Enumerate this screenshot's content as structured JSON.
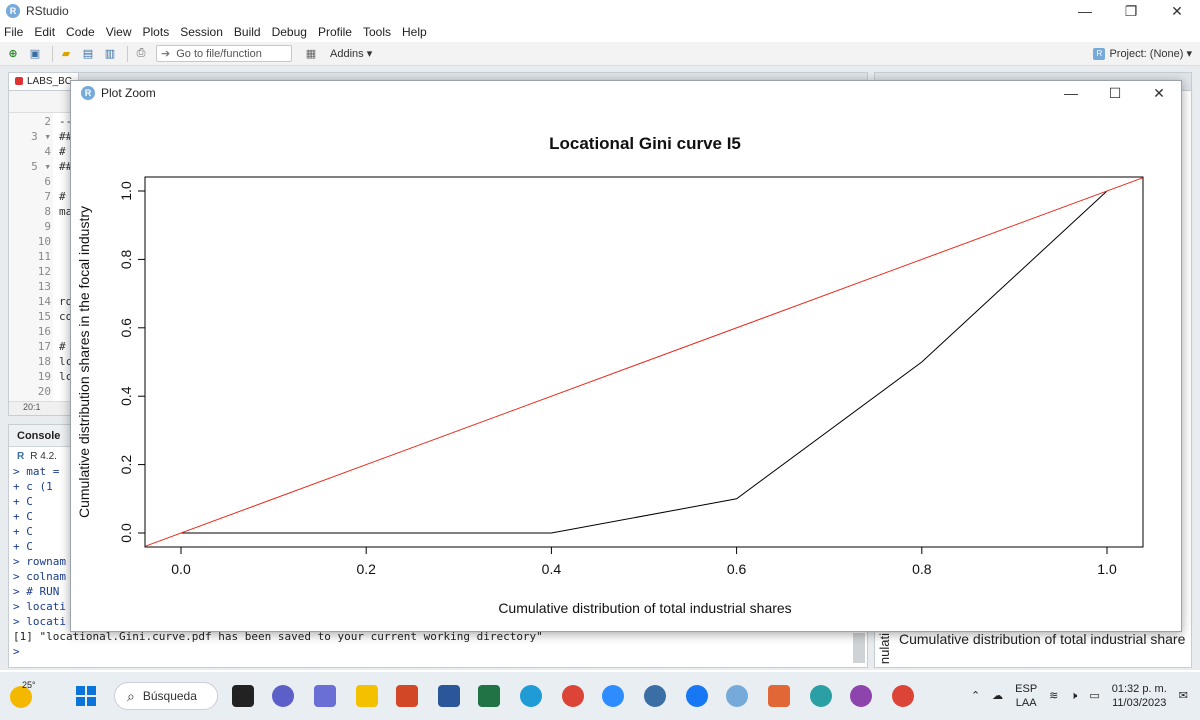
{
  "app": {
    "title": "RStudio",
    "icon_letter": "R"
  },
  "window_controls": {
    "minimize": "—",
    "maximize": "❐",
    "close": "✕"
  },
  "menu": [
    "File",
    "Edit",
    "Code",
    "View",
    "Plots",
    "Session",
    "Build",
    "Debug",
    "Profile",
    "Tools",
    "Help"
  ],
  "toolbar": {
    "goto_placeholder": "Go to file/function",
    "addins": "Addins ▾",
    "project": "Project: (None) ▾"
  },
  "editor": {
    "tab_label": "LABS_BC",
    "lines": [
      {
        "num": "2",
        "code": "--"
      },
      {
        "num": "3 ▾",
        "code": "##"
      },
      {
        "num": "4",
        "code": "#"
      },
      {
        "num": "5 ▾",
        "code": "##"
      },
      {
        "num": "6",
        "code": ""
      },
      {
        "num": "7",
        "code": "#"
      },
      {
        "num": "8",
        "code": "ma"
      },
      {
        "num": "9",
        "code": ""
      },
      {
        "num": "10",
        "code": ""
      },
      {
        "num": "11",
        "code": ""
      },
      {
        "num": "12",
        "code": ""
      },
      {
        "num": "13",
        "code": ""
      },
      {
        "num": "14",
        "code": "ro"
      },
      {
        "num": "15",
        "code": "co"
      },
      {
        "num": "16",
        "code": ""
      },
      {
        "num": "17",
        "code": "#"
      },
      {
        "num": "18",
        "code": "lc"
      },
      {
        "num": "19",
        "code": "lc"
      },
      {
        "num": "20",
        "code": ""
      }
    ],
    "status": "20:1"
  },
  "console": {
    "tab": "Console",
    "version": "R 4.2.",
    "lines": [
      "> mat =",
      "+   c (1",
      "+      C",
      "+      C",
      "+      C",
      "+      C",
      "> rownam",
      "> colnam",
      "> # RUN",
      "> locati",
      "> locati"
    ],
    "output": "[1] \"locational.Gini.curve.pdf has been saved to your current working directory\"",
    "prompt": ">"
  },
  "right_pane": {
    "xlabel_fragment": "Cumulative distribution of total industrial share",
    "ylabel_fragment": "nulati"
  },
  "zoom_window": {
    "title": "Plot Zoom",
    "icon_letter": "R"
  },
  "chart_data": {
    "type": "line",
    "title": "Locational Gini curve I5",
    "xlabel": "Cumulative distribution of total industrial shares",
    "ylabel": "Cumulative distribution shares in the focal industry",
    "xlim": [
      0,
      1
    ],
    "ylim": [
      0,
      1
    ],
    "x_ticks": [
      "0.0",
      "0.2",
      "0.4",
      "0.6",
      "0.8",
      "1.0"
    ],
    "y_ticks": [
      "0.0",
      "0.2",
      "0.4",
      "0.6",
      "0.8",
      "1.0"
    ],
    "grid": false,
    "series": [
      {
        "color": "#000000",
        "x": [
          0,
          0.4,
          0.6,
          0.8,
          1.0
        ],
        "y": [
          0,
          0,
          0.1,
          0.5,
          1.0
        ]
      },
      {
        "color": "#e8291c",
        "x": [
          0,
          1
        ],
        "y": [
          0,
          1
        ]
      }
    ]
  },
  "taskbar": {
    "temperature": "25°",
    "search_label": "Búsqueda",
    "language": "ESP",
    "layout": "LAA",
    "time": "01:32 p. m.",
    "date": "11/03/2023"
  }
}
